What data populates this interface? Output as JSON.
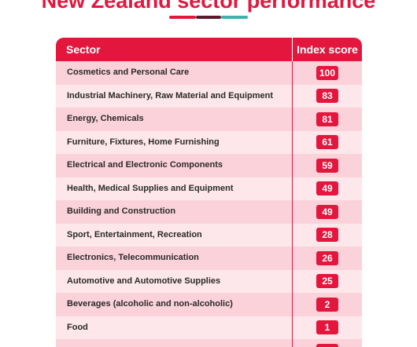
{
  "title": "New Zealand sector performance",
  "colors": {
    "accent": "#e3173e",
    "row_odd": "#fbd2da",
    "row_even": "#fde7ea",
    "divider_dark": "#5a1a2e",
    "divider_teal": "#3fb1a9"
  },
  "table": {
    "headers": {
      "sector": "Sector",
      "score": "Index score"
    },
    "rows": [
      {
        "sector": "Cosmetics and Personal Care",
        "score": "100"
      },
      {
        "sector": "Industrial Machinery, Raw Material and Equipment",
        "score": "83"
      },
      {
        "sector": "Energy, Chemicals",
        "score": "81"
      },
      {
        "sector": "Furniture, Fixtures, Home Furnishing",
        "score": "61"
      },
      {
        "sector": "Electrical and Electronic Components",
        "score": "59"
      },
      {
        "sector": "Health, Medical Supplies and Equipment",
        "score": "49"
      },
      {
        "sector": "Building and Construction",
        "score": "49"
      },
      {
        "sector": "Sport, Entertainment, Recreation",
        "score": "28"
      },
      {
        "sector": "Electronics, Telecommunication",
        "score": "26"
      },
      {
        "sector": "Automotive and Automotive Supplies",
        "score": "25"
      },
      {
        "sector": "Beverages (alcoholic and non-alcoholic)",
        "score": "2"
      },
      {
        "sector": "Food",
        "score": "1"
      },
      {
        "sector": "",
        "score": ""
      }
    ]
  }
}
